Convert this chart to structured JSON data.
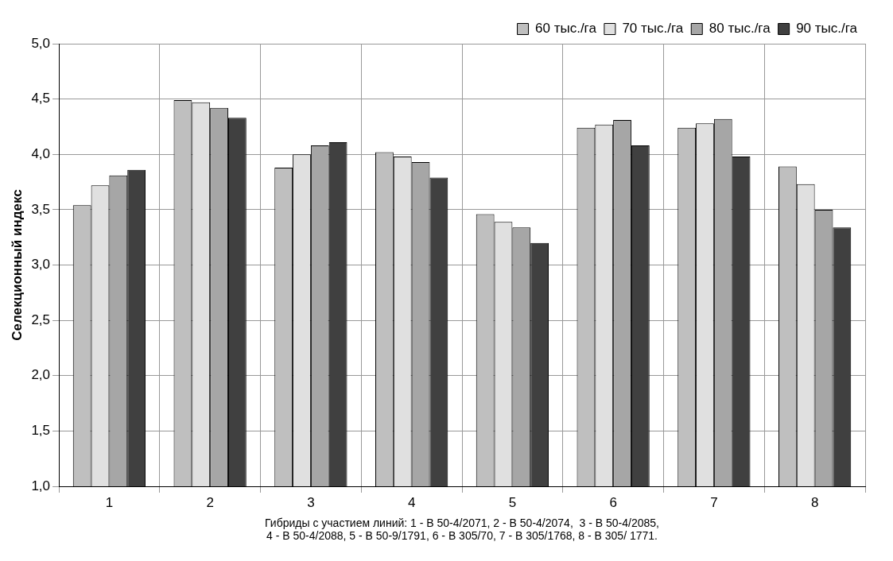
{
  "chart_data": {
    "type": "bar",
    "categories": [
      "1",
      "2",
      "3",
      "4",
      "5",
      "6",
      "7",
      "8"
    ],
    "series": [
      {
        "name": "60 тыс./га",
        "color": "#bfbfbf",
        "values": [
          3.54,
          4.49,
          3.88,
          4.02,
          3.46,
          4.24,
          4.24,
          3.89
        ]
      },
      {
        "name": "70 тыс./га",
        "color": "#e0e0e0",
        "values": [
          3.72,
          4.47,
          4.0,
          3.98,
          3.39,
          4.27,
          4.28,
          3.73
        ]
      },
      {
        "name": "80 тыс./га",
        "color": "#a6a6a6",
        "values": [
          3.81,
          4.42,
          4.08,
          3.93,
          3.34,
          4.31,
          4.32,
          3.5
        ]
      },
      {
        "name": "90 тыс./га",
        "color": "#404040",
        "values": [
          3.86,
          4.33,
          4.11,
          3.79,
          3.2,
          4.08,
          3.98,
          3.34
        ]
      }
    ],
    "ylabel": "Селекционный индекс",
    "xlabel": "Гибриды с участием линий: 1 - В 50-4/2071, 2 - В 50-4/2074,  3 - В 50-4/2085,\n4 - В 50-4/2088, 5 - В 50-9/1791, 6 - В 305/70, 7 - В 305/1768, 8 - В 305/ 1771.",
    "ylim": [
      1,
      5
    ],
    "yticks": [
      {
        "value": 1,
        "label": "1,0"
      },
      {
        "value": 1.5,
        "label": "1,5"
      },
      {
        "value": 2,
        "label": "2,0"
      },
      {
        "value": 2.5,
        "label": "2,5"
      },
      {
        "value": 3,
        "label": "3,0"
      },
      {
        "value": 3.5,
        "label": "3,5"
      },
      {
        "value": 4,
        "label": "4,0"
      },
      {
        "value": 4.5,
        "label": "4,5"
      },
      {
        "value": 5,
        "label": "5,0"
      }
    ],
    "grid": true,
    "legend": "top"
  }
}
